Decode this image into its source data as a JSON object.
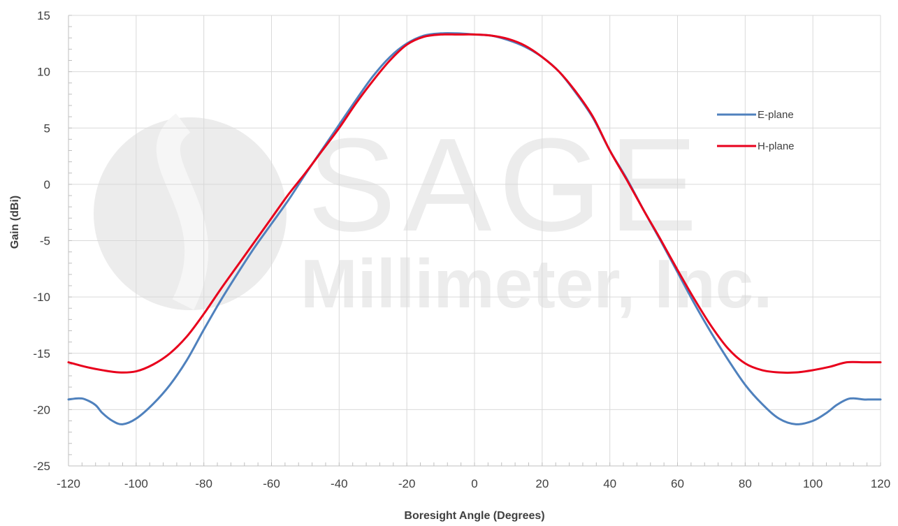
{
  "chart_data": {
    "type": "line",
    "xlabel": "Boresight Angle (Degrees)",
    "ylabel": "Gain (dBi)",
    "xlim": [
      -120,
      120
    ],
    "ylim": [
      -25,
      15
    ],
    "xticks": [
      -120,
      -100,
      -80,
      -60,
      -40,
      -20,
      0,
      20,
      40,
      60,
      80,
      100,
      120
    ],
    "yticks": [
      15,
      10,
      5,
      0,
      -5,
      -10,
      -15,
      -20,
      -25
    ],
    "grid": true,
    "legend_position": "right",
    "watermark": {
      "lines": [
        "SAGE",
        "Millimeter, Inc."
      ],
      "color": "#ececec"
    },
    "series": [
      {
        "name": "E-plane",
        "color": "#4f81bd",
        "x": [
          -120,
          -117,
          -115,
          -112,
          -110,
          -107,
          -104,
          -100,
          -95,
          -90,
          -85,
          -80,
          -75,
          -70,
          -65,
          -60,
          -55,
          -50,
          -45,
          -40,
          -35,
          -30,
          -25,
          -20,
          -15,
          -10,
          -5,
          0,
          5,
          10,
          15,
          20,
          25,
          30,
          35,
          40,
          45,
          50,
          55,
          60,
          65,
          70,
          75,
          80,
          85,
          90,
          95,
          100,
          104,
          107,
          110,
          112,
          115,
          117,
          120
        ],
        "y": [
          -19.1,
          -19.0,
          -19.1,
          -19.6,
          -20.3,
          -21.0,
          -21.3,
          -20.8,
          -19.5,
          -17.8,
          -15.6,
          -12.9,
          -10.3,
          -7.9,
          -5.6,
          -3.5,
          -1.4,
          0.9,
          3.1,
          5.3,
          7.5,
          9.6,
          11.3,
          12.5,
          13.2,
          13.4,
          13.4,
          13.3,
          13.2,
          12.8,
          12.2,
          11.3,
          10.0,
          8.1,
          5.9,
          3.0,
          0.5,
          -2.3,
          -5.0,
          -7.8,
          -10.6,
          -13.2,
          -15.6,
          -17.8,
          -19.5,
          -20.8,
          -21.3,
          -21.0,
          -20.3,
          -19.6,
          -19.1,
          -19.0,
          -19.1,
          -19.1,
          -19.1
        ]
      },
      {
        "name": "H-plane",
        "color": "#e8001c",
        "x": [
          -120,
          -115,
          -110,
          -105,
          -100,
          -95,
          -90,
          -85,
          -80,
          -75,
          -70,
          -65,
          -60,
          -55,
          -50,
          -45,
          -40,
          -35,
          -30,
          -25,
          -20,
          -15,
          -10,
          -5,
          0,
          5,
          10,
          15,
          20,
          25,
          30,
          35,
          40,
          45,
          50,
          55,
          60,
          65,
          70,
          75,
          80,
          85,
          90,
          95,
          100,
          105,
          110,
          115,
          120
        ],
        "y": [
          -15.8,
          -16.2,
          -16.5,
          -16.7,
          -16.6,
          -16.0,
          -15.0,
          -13.5,
          -11.5,
          -9.3,
          -7.2,
          -5.1,
          -3.0,
          -0.9,
          1.0,
          3.0,
          5.0,
          7.2,
          9.2,
          11.0,
          12.4,
          13.1,
          13.3,
          13.3,
          13.3,
          13.2,
          12.9,
          12.3,
          11.3,
          10.0,
          8.2,
          6.0,
          3.0,
          0.4,
          -2.3,
          -4.9,
          -7.6,
          -10.2,
          -12.6,
          -14.6,
          -15.9,
          -16.5,
          -16.7,
          -16.7,
          -16.5,
          -16.2,
          -15.8,
          -15.8,
          -15.8
        ]
      }
    ]
  }
}
